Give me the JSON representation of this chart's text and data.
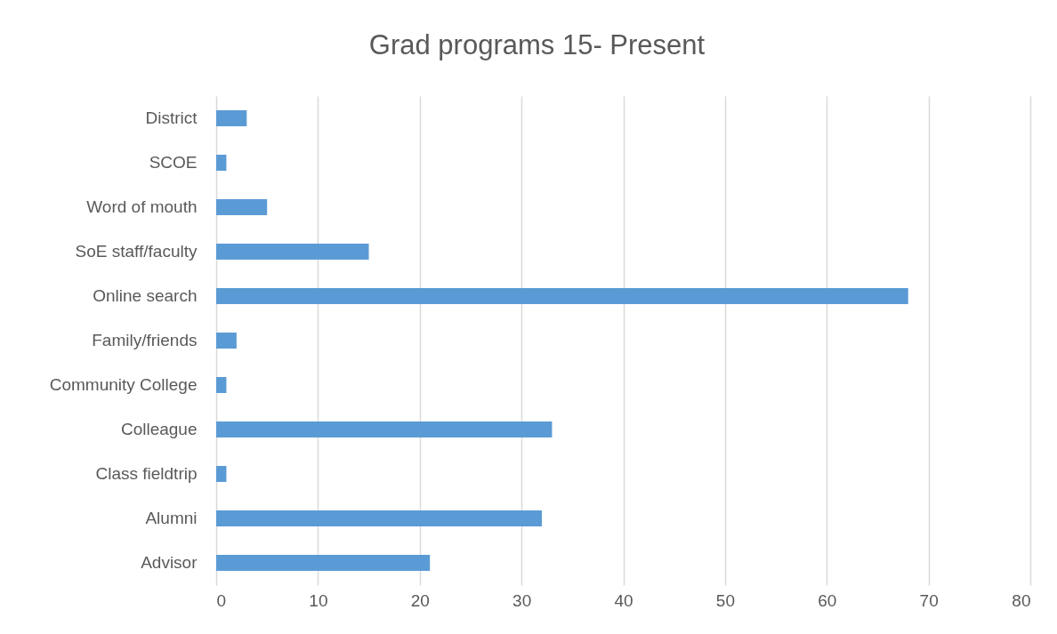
{
  "chart_data": {
    "type": "bar",
    "orientation": "horizontal",
    "title": "Grad programs 15- Present",
    "categories": [
      "District",
      "SCOE",
      "Word of mouth",
      "SoE staff/faculty",
      "Online search",
      "Family/friends",
      "Community College",
      "Colleague",
      "Class fieldtrip",
      "Alumni",
      "Advisor"
    ],
    "values": [
      3,
      1,
      5,
      15,
      68,
      2,
      1,
      33,
      1,
      32,
      21
    ],
    "color": "#5b9bd5",
    "xlim": [
      0,
      80
    ],
    "xticks": [
      0,
      10,
      20,
      30,
      40,
      50,
      60,
      70,
      80
    ],
    "grid": "x"
  }
}
